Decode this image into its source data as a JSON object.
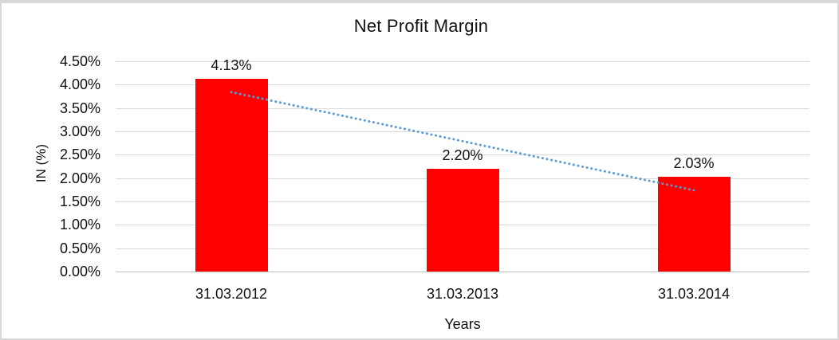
{
  "chart_data": {
    "type": "bar",
    "title": "Net Profit Margin",
    "xlabel": "Years",
    "ylabel": "IN (%)",
    "categories": [
      "31.03.2012",
      "31.03.2013",
      "31.03.2014"
    ],
    "values": [
      4.13,
      2.2,
      2.03
    ],
    "data_labels": [
      "4.13%",
      "2.20%",
      "2.03%"
    ],
    "ylim": [
      0,
      4.5
    ],
    "ytick_values": [
      0,
      0.5,
      1,
      1.5,
      2,
      2.5,
      3,
      3.5,
      4,
      4.5
    ],
    "ytick_labels": [
      "0.00%",
      "0.50%",
      "1.00%",
      "1.50%",
      "2.00%",
      "2.50%",
      "3.00%",
      "3.50%",
      "4.00%",
      "4.50%"
    ],
    "grid": true,
    "legend": "none",
    "bar_color": "#ff0000",
    "text_color": "#111111",
    "gridline_color": "#d9d9d9",
    "trendline": {
      "type": "linear",
      "style": "dotted",
      "color": "#5b9bd5",
      "start_value": 3.84,
      "end_value": 1.74
    }
  }
}
